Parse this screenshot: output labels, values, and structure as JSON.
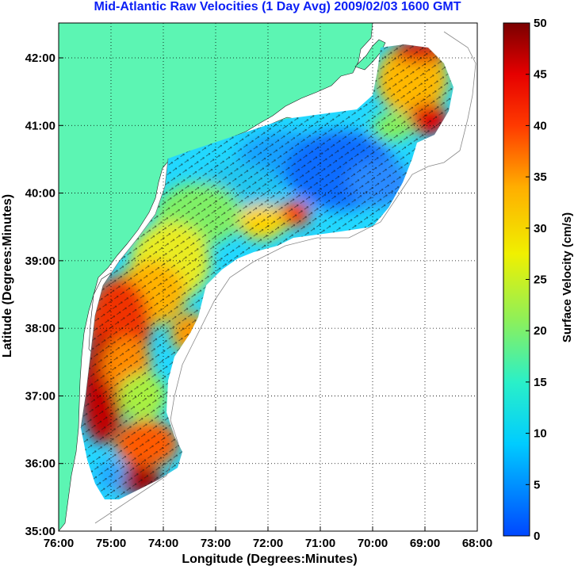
{
  "title": "Mid-Atlantic Raw Velocities (1 Day Avg) 2009/02/03 1600 GMT",
  "x_axis": {
    "label": "Longitude (Degrees:Minutes)",
    "ticks": [
      "76:00",
      "75:00",
      "74:00",
      "73:00",
      "72:00",
      "71:00",
      "70:00",
      "69:00",
      "68:00"
    ]
  },
  "y_axis": {
    "label": "Latitude (Degrees:Minutes)",
    "ticks": [
      "42:00",
      "41:00",
      "40:00",
      "39:00",
      "38:00",
      "37:00",
      "36:00",
      "35:00"
    ]
  },
  "colorbar": {
    "label": "Surface Velocity (cm/s)",
    "ticks": [
      "50",
      "45",
      "40",
      "35",
      "30",
      "25",
      "20",
      "15",
      "10",
      "5",
      "0"
    ],
    "range": [
      0,
      50
    ]
  },
  "colors": {
    "title": "#0b1ff5",
    "land": "#5cf5b3",
    "coastline": "#666666"
  }
}
